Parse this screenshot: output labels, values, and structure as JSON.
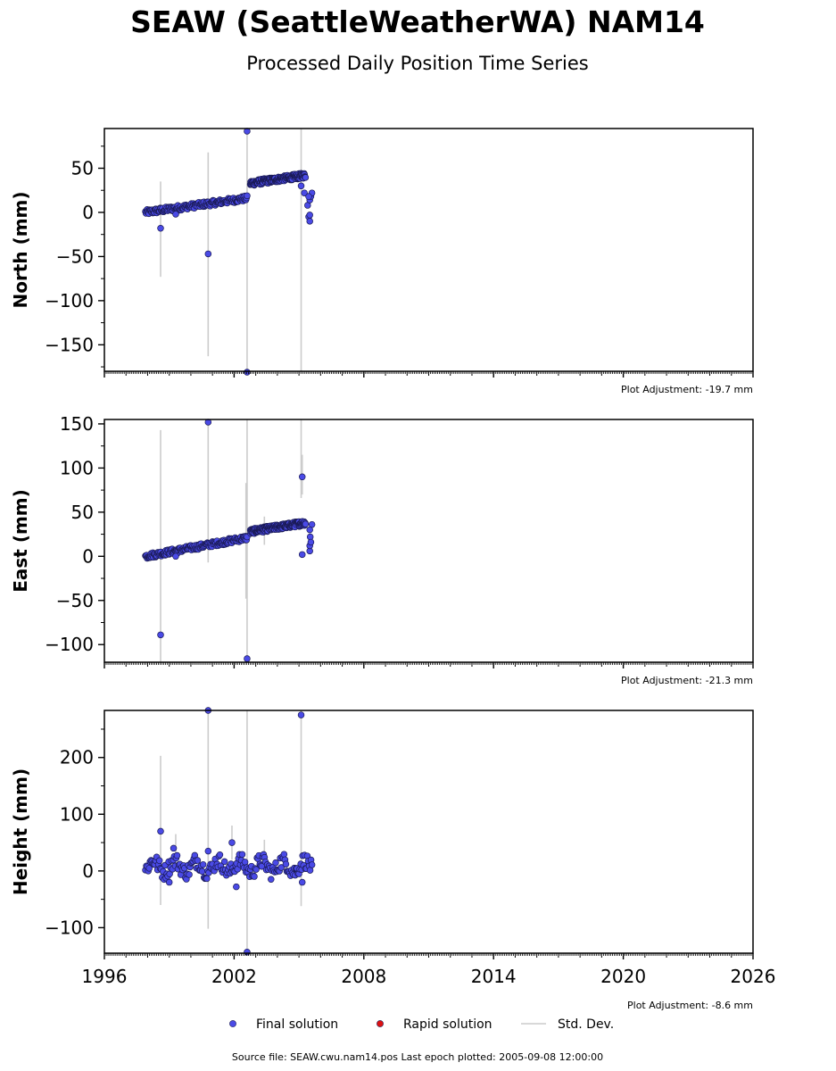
{
  "chart_data": {
    "type": "scatter",
    "title": "SEAW (SeattleWeatherWA) NAM14",
    "subtitle": "Processed Daily Position Time Series",
    "xlim": [
      1996,
      2026
    ],
    "xticks": [
      1996,
      2002,
      2008,
      2014,
      2020,
      2026
    ],
    "footer": "Source file: SEAW.cwu.nam14.pos  Last epoch plotted: 2005-09-08 12:00:00",
    "legend": [
      {
        "label": "Final solution",
        "color": "#4a4ae6",
        "kind": "dot"
      },
      {
        "label": "Rapid solution",
        "color": "#dd1111",
        "kind": "dot"
      },
      {
        "label": "Std. Dev.",
        "color": "#cccccc",
        "kind": "line"
      }
    ],
    "panels": [
      {
        "ylabel": "North (mm)",
        "ylim": [
          -180,
          95
        ],
        "yticks": [
          50,
          0,
          -50,
          -100,
          -150
        ],
        "adjustment": "Plot Adjustment: -19.7 mm",
        "trend": [
          {
            "x": [
              1997.9,
              2002.6
            ],
            "y": [
              0,
              16
            ],
            "std": 3
          },
          {
            "x": [
              2002.75,
              2005.3
            ],
            "y": [
              33,
              42
            ],
            "std": 3
          }
        ],
        "points": [
          [
            1998.6,
            -18
          ],
          [
            1999.3,
            -2
          ],
          [
            2000.8,
            -47
          ],
          [
            2002.6,
            92
          ],
          [
            2002.6,
            -181
          ],
          [
            2005.1,
            30
          ],
          [
            2005.25,
            22
          ],
          [
            2005.4,
            8
          ],
          [
            2005.45,
            -5
          ],
          [
            2005.5,
            -10
          ],
          [
            2005.5,
            14
          ],
          [
            2005.55,
            18
          ],
          [
            2005.6,
            22
          ],
          [
            2005.5,
            -3
          ],
          [
            2005.45,
            18
          ]
        ],
        "errorbars": [
          [
            1998.6,
            -73,
            35
          ],
          [
            2000.8,
            -163,
            68
          ],
          [
            2002.6,
            -180,
            95
          ],
          [
            2005.1,
            -180,
            95
          ]
        ]
      },
      {
        "ylabel": "East (mm)",
        "ylim": [
          -120,
          155
        ],
        "yticks": [
          150,
          100,
          50,
          0,
          -50,
          -100
        ],
        "adjustment": "Plot Adjustment: -21.3 mm",
        "trend": [
          {
            "x": [
              1997.9,
              2002.6
            ],
            "y": [
              0,
              21
            ],
            "std": 3
          },
          {
            "x": [
              2002.75,
              2005.3
            ],
            "y": [
              28,
              38
            ],
            "std": 3
          }
        ],
        "points": [
          [
            1998.6,
            -89
          ],
          [
            2000.8,
            152
          ],
          [
            2002.6,
            -116
          ],
          [
            2005.15,
            90
          ],
          [
            2005.15,
            2
          ],
          [
            2005.5,
            6
          ],
          [
            2005.5,
            12
          ],
          [
            2005.52,
            22
          ],
          [
            2005.55,
            16
          ],
          [
            2005.6,
            36
          ],
          [
            1999.3,
            0
          ],
          [
            2005.5,
            30
          ]
        ],
        "errorbars": [
          [
            1998.6,
            -120,
            143
          ],
          [
            2000.8,
            -7,
            155
          ],
          [
            2002.6,
            -120,
            155
          ],
          [
            2002.55,
            -48,
            83
          ],
          [
            2005.1,
            66,
            155
          ],
          [
            2005.15,
            70,
            115
          ],
          [
            2003.4,
            13,
            45
          ]
        ]
      },
      {
        "ylabel": "Height (mm)",
        "ylim": [
          -145,
          283
        ],
        "yticks": [
          200,
          100,
          0,
          -100
        ],
        "adjustment": "Plot Adjustment: -8.6 mm",
        "trend": [
          {
            "x": [
              1997.9,
              2005.6
            ],
            "y": [
              8,
              8
            ],
            "std": 14
          }
        ],
        "points": [
          [
            2000.8,
            283
          ],
          [
            2005.1,
            275
          ],
          [
            1998.6,
            70
          ],
          [
            1999.2,
            40
          ],
          [
            2001.9,
            50
          ],
          [
            2002.6,
            -143
          ],
          [
            2005.15,
            -20
          ],
          [
            2000.8,
            35
          ],
          [
            1999.0,
            -20
          ],
          [
            2002.1,
            -28
          ]
        ],
        "errorbars": [
          [
            1998.6,
            -60,
            203
          ],
          [
            2000.8,
            -102,
            283
          ],
          [
            2002.6,
            -145,
            283
          ],
          [
            2005.1,
            -62,
            283
          ],
          [
            2001.9,
            20,
            80
          ],
          [
            1999.3,
            20,
            65
          ],
          [
            2003.4,
            20,
            55
          ]
        ]
      }
    ]
  }
}
